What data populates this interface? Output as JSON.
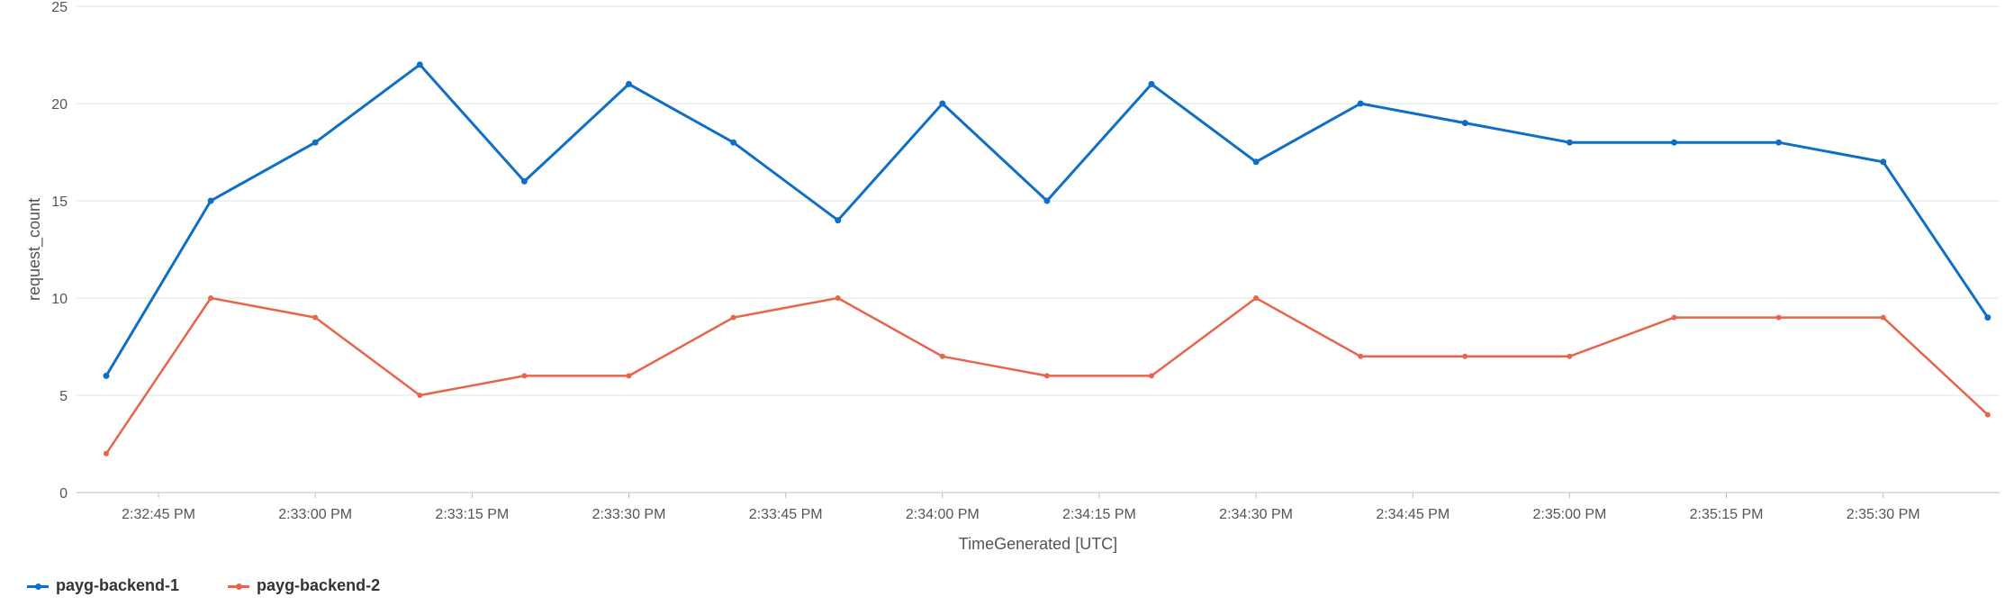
{
  "chart_data": {
    "type": "line",
    "xlabel": "TimeGenerated [UTC]",
    "ylabel": "request_count",
    "ylim": [
      0,
      25
    ],
    "yticks": [
      0,
      5,
      10,
      15,
      20,
      25
    ],
    "grid": true,
    "legend_position": "bottom-left",
    "x": [
      "2:32:40 PM",
      "2:32:50 PM",
      "2:33:00 PM",
      "2:33:10 PM",
      "2:33:20 PM",
      "2:33:30 PM",
      "2:33:40 PM",
      "2:33:50 PM",
      "2:34:00 PM",
      "2:34:10 PM",
      "2:34:20 PM",
      "2:34:30 PM",
      "2:34:40 PM",
      "2:34:50 PM",
      "2:35:00 PM",
      "2:35:10 PM",
      "2:35:20 PM",
      "2:35:30 PM",
      "2:35:40 PM"
    ],
    "x_tick_labels": [
      "2:32:45 PM",
      "2:33:00 PM",
      "2:33:15 PM",
      "2:33:30 PM",
      "2:33:45 PM",
      "2:34:00 PM",
      "2:34:15 PM",
      "2:34:30 PM",
      "2:34:45 PM",
      "2:35:00 PM",
      "2:35:15 PM",
      "2:35:30 PM"
    ],
    "series": [
      {
        "name": "payg-backend-1",
        "color": "#0f6fc6",
        "values": [
          6,
          15,
          18,
          22,
          16,
          21,
          18,
          14,
          20,
          15,
          21,
          17,
          20,
          19,
          18,
          18,
          18,
          17,
          9
        ]
      },
      {
        "name": "payg-backend-2",
        "color": "#e8644a",
        "values": [
          2,
          10,
          9,
          5,
          6,
          6,
          9,
          10,
          7,
          6,
          6,
          10,
          7,
          7,
          7,
          9,
          9,
          9,
          4
        ]
      }
    ]
  }
}
